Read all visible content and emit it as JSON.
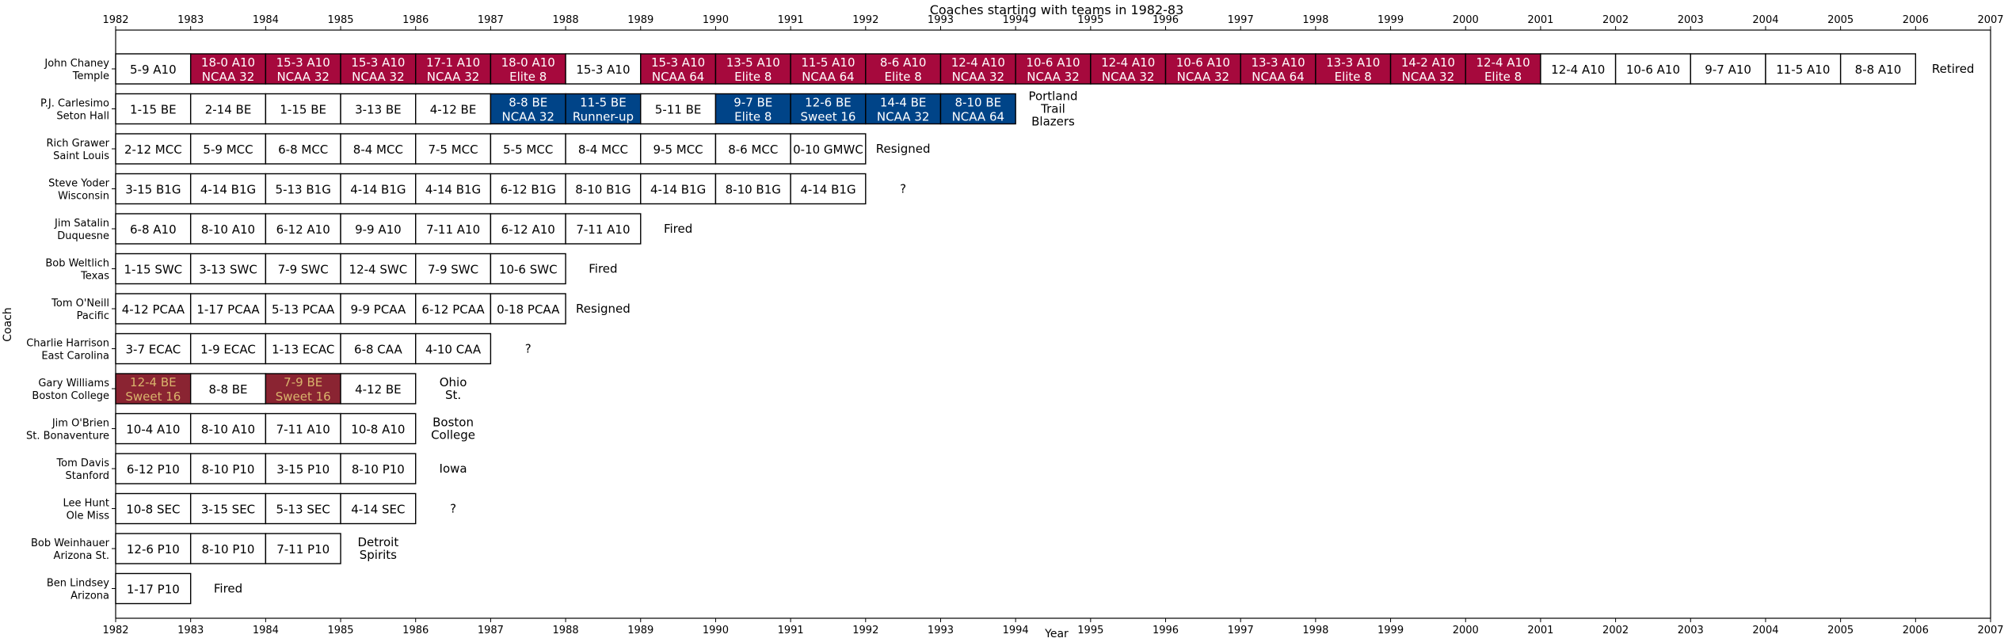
{
  "chart_data": {
    "type": "timeline",
    "title": "Coaches starting with teams in 1982-83",
    "xlabel": "Year",
    "ylabel": "Coach",
    "xlim": [
      1982,
      2007
    ],
    "x_ticks": [
      "1982",
      "1983",
      "1984",
      "1985",
      "1986",
      "1987",
      "1988",
      "1989",
      "1990",
      "1991",
      "1992",
      "1993",
      "1994",
      "1995",
      "1996",
      "1997",
      "1998",
      "1999",
      "2000",
      "2001",
      "2002",
      "2003",
      "2004",
      "2005",
      "2006",
      "2007"
    ],
    "colors": {
      "temple": "#A6093D",
      "seton_hall": "#004488",
      "boston_college": "#8A2432",
      "boston_college_text": "#D9B46C",
      "cell_border": "#000000",
      "cell_fill": "#ffffff"
    },
    "rows": [
      {
        "coach": "John Chaney",
        "team": "Temple",
        "seasons": [
          {
            "year": 1982,
            "line1": "5-9 A10",
            "line2": "",
            "style": "plain"
          },
          {
            "year": 1983,
            "line1": "18-0 A10",
            "line2": "NCAA 32",
            "style": "temple"
          },
          {
            "year": 1984,
            "line1": "15-3 A10",
            "line2": "NCAA 32",
            "style": "temple"
          },
          {
            "year": 1985,
            "line1": "15-3 A10",
            "line2": "NCAA 32",
            "style": "temple"
          },
          {
            "year": 1986,
            "line1": "17-1 A10",
            "line2": "NCAA 32",
            "style": "temple"
          },
          {
            "year": 1987,
            "line1": "18-0 A10",
            "line2": "Elite 8",
            "style": "temple"
          },
          {
            "year": 1988,
            "line1": "15-3 A10",
            "line2": "",
            "style": "plain"
          },
          {
            "year": 1989,
            "line1": "15-3 A10",
            "line2": "NCAA 64",
            "style": "temple"
          },
          {
            "year": 1990,
            "line1": "13-5 A10",
            "line2": "Elite 8",
            "style": "temple"
          },
          {
            "year": 1991,
            "line1": "11-5 A10",
            "line2": "NCAA 64",
            "style": "temple"
          },
          {
            "year": 1992,
            "line1": "8-6 A10",
            "line2": "Elite 8",
            "style": "temple"
          },
          {
            "year": 1993,
            "line1": "12-4 A10",
            "line2": "NCAA 32",
            "style": "temple"
          },
          {
            "year": 1994,
            "line1": "10-6 A10",
            "line2": "NCAA 32",
            "style": "temple"
          },
          {
            "year": 1995,
            "line1": "12-4 A10",
            "line2": "NCAA 32",
            "style": "temple"
          },
          {
            "year": 1996,
            "line1": "10-6 A10",
            "line2": "NCAA 32",
            "style": "temple"
          },
          {
            "year": 1997,
            "line1": "13-3 A10",
            "line2": "NCAA 64",
            "style": "temple"
          },
          {
            "year": 1998,
            "line1": "13-3 A10",
            "line2": "Elite 8",
            "style": "temple"
          },
          {
            "year": 1999,
            "line1": "14-2 A10",
            "line2": "NCAA 32",
            "style": "temple"
          },
          {
            "year": 2000,
            "line1": "12-4 A10",
            "line2": "Elite 8",
            "style": "temple"
          },
          {
            "year": 2001,
            "line1": "12-4 A10",
            "line2": "",
            "style": "plain"
          },
          {
            "year": 2002,
            "line1": "10-6 A10",
            "line2": "",
            "style": "plain"
          },
          {
            "year": 2003,
            "line1": "9-7 A10",
            "line2": "",
            "style": "plain"
          },
          {
            "year": 2004,
            "line1": "11-5 A10",
            "line2": "",
            "style": "plain"
          },
          {
            "year": 2005,
            "line1": "8-8 A10",
            "line2": "",
            "style": "plain"
          }
        ],
        "outcome": "Retired"
      },
      {
        "coach": "P.J. Carlesimo",
        "team": "Seton Hall",
        "seasons": [
          {
            "year": 1982,
            "line1": "1-15 BE",
            "line2": "",
            "style": "plain"
          },
          {
            "year": 1983,
            "line1": "2-14 BE",
            "line2": "",
            "style": "plain"
          },
          {
            "year": 1984,
            "line1": "1-15 BE",
            "line2": "",
            "style": "plain"
          },
          {
            "year": 1985,
            "line1": "3-13 BE",
            "line2": "",
            "style": "plain"
          },
          {
            "year": 1986,
            "line1": "4-12 BE",
            "line2": "",
            "style": "plain"
          },
          {
            "year": 1987,
            "line1": "8-8 BE",
            "line2": "NCAA 32",
            "style": "seton_hall"
          },
          {
            "year": 1988,
            "line1": "11-5 BE",
            "line2": "Runner-up",
            "style": "seton_hall"
          },
          {
            "year": 1989,
            "line1": "5-11 BE",
            "line2": "",
            "style": "plain"
          },
          {
            "year": 1990,
            "line1": "9-7 BE",
            "line2": "Elite 8",
            "style": "seton_hall"
          },
          {
            "year": 1991,
            "line1": "12-6 BE",
            "line2": "Sweet 16",
            "style": "seton_hall"
          },
          {
            "year": 1992,
            "line1": "14-4 BE",
            "line2": "NCAA 32",
            "style": "seton_hall"
          },
          {
            "year": 1993,
            "line1": "8-10 BE",
            "line2": "NCAA 64",
            "style": "seton_hall"
          }
        ],
        "outcome": "Portland\nTrail\nBlazers"
      },
      {
        "coach": "Rich Grawer",
        "team": "Saint Louis",
        "seasons": [
          {
            "year": 1982,
            "line1": "2-12 MCC",
            "line2": "",
            "style": "plain"
          },
          {
            "year": 1983,
            "line1": "5-9 MCC",
            "line2": "",
            "style": "plain"
          },
          {
            "year": 1984,
            "line1": "6-8 MCC",
            "line2": "",
            "style": "plain"
          },
          {
            "year": 1985,
            "line1": "8-4 MCC",
            "line2": "",
            "style": "plain"
          },
          {
            "year": 1986,
            "line1": "7-5 MCC",
            "line2": "",
            "style": "plain"
          },
          {
            "year": 1987,
            "line1": "5-5 MCC",
            "line2": "",
            "style": "plain"
          },
          {
            "year": 1988,
            "line1": "8-4 MCC",
            "line2": "",
            "style": "plain"
          },
          {
            "year": 1989,
            "line1": "9-5 MCC",
            "line2": "",
            "style": "plain"
          },
          {
            "year": 1990,
            "line1": "8-6 MCC",
            "line2": "",
            "style": "plain"
          },
          {
            "year": 1991,
            "line1": "0-10 GMWC",
            "line2": "",
            "style": "plain"
          }
        ],
        "outcome": "Resigned"
      },
      {
        "coach": "Steve Yoder",
        "team": "Wisconsin",
        "seasons": [
          {
            "year": 1982,
            "line1": "3-15 B1G",
            "line2": "",
            "style": "plain"
          },
          {
            "year": 1983,
            "line1": "4-14 B1G",
            "line2": "",
            "style": "plain"
          },
          {
            "year": 1984,
            "line1": "5-13 B1G",
            "line2": "",
            "style": "plain"
          },
          {
            "year": 1985,
            "line1": "4-14 B1G",
            "line2": "",
            "style": "plain"
          },
          {
            "year": 1986,
            "line1": "4-14 B1G",
            "line2": "",
            "style": "plain"
          },
          {
            "year": 1987,
            "line1": "6-12 B1G",
            "line2": "",
            "style": "plain"
          },
          {
            "year": 1988,
            "line1": "8-10 B1G",
            "line2": "",
            "style": "plain"
          },
          {
            "year": 1989,
            "line1": "4-14 B1G",
            "line2": "",
            "style": "plain"
          },
          {
            "year": 1990,
            "line1": "8-10 B1G",
            "line2": "",
            "style": "plain"
          },
          {
            "year": 1991,
            "line1": "4-14 B1G",
            "line2": "",
            "style": "plain"
          }
        ],
        "outcome": "?"
      },
      {
        "coach": "Jim Satalin",
        "team": "Duquesne",
        "seasons": [
          {
            "year": 1982,
            "line1": "6-8 A10",
            "line2": "",
            "style": "plain"
          },
          {
            "year": 1983,
            "line1": "8-10 A10",
            "line2": "",
            "style": "plain"
          },
          {
            "year": 1984,
            "line1": "6-12 A10",
            "line2": "",
            "style": "plain"
          },
          {
            "year": 1985,
            "line1": "9-9 A10",
            "line2": "",
            "style": "plain"
          },
          {
            "year": 1986,
            "line1": "7-11 A10",
            "line2": "",
            "style": "plain"
          },
          {
            "year": 1987,
            "line1": "6-12 A10",
            "line2": "",
            "style": "plain"
          },
          {
            "year": 1988,
            "line1": "7-11 A10",
            "line2": "",
            "style": "plain"
          }
        ],
        "outcome": "Fired"
      },
      {
        "coach": "Bob Weltlich",
        "team": "Texas",
        "seasons": [
          {
            "year": 1982,
            "line1": "1-15 SWC",
            "line2": "",
            "style": "plain"
          },
          {
            "year": 1983,
            "line1": "3-13 SWC",
            "line2": "",
            "style": "plain"
          },
          {
            "year": 1984,
            "line1": "7-9 SWC",
            "line2": "",
            "style": "plain"
          },
          {
            "year": 1985,
            "line1": "12-4 SWC",
            "line2": "",
            "style": "plain"
          },
          {
            "year": 1986,
            "line1": "7-9 SWC",
            "line2": "",
            "style": "plain"
          },
          {
            "year": 1987,
            "line1": "10-6 SWC",
            "line2": "",
            "style": "plain"
          }
        ],
        "outcome": "Fired"
      },
      {
        "coach": "Tom O'Neill",
        "team": "Pacific",
        "seasons": [
          {
            "year": 1982,
            "line1": "4-12 PCAA",
            "line2": "",
            "style": "plain"
          },
          {
            "year": 1983,
            "line1": "1-17 PCAA",
            "line2": "",
            "style": "plain"
          },
          {
            "year": 1984,
            "line1": "5-13 PCAA",
            "line2": "",
            "style": "plain"
          },
          {
            "year": 1985,
            "line1": "9-9 PCAA",
            "line2": "",
            "style": "plain"
          },
          {
            "year": 1986,
            "line1": "6-12 PCAA",
            "line2": "",
            "style": "plain"
          },
          {
            "year": 1987,
            "line1": "0-18 PCAA",
            "line2": "",
            "style": "plain"
          }
        ],
        "outcome": "Resigned"
      },
      {
        "coach": "Charlie Harrison",
        "team": "East Carolina",
        "seasons": [
          {
            "year": 1982,
            "line1": "3-7 ECAC",
            "line2": "",
            "style": "plain"
          },
          {
            "year": 1983,
            "line1": "1-9 ECAC",
            "line2": "",
            "style": "plain"
          },
          {
            "year": 1984,
            "line1": "1-13 ECAC",
            "line2": "",
            "style": "plain"
          },
          {
            "year": 1985,
            "line1": "6-8 CAA",
            "line2": "",
            "style": "plain"
          },
          {
            "year": 1986,
            "line1": "4-10 CAA",
            "line2": "",
            "style": "plain"
          }
        ],
        "outcome": "?"
      },
      {
        "coach": "Gary Williams",
        "team": "Boston College",
        "seasons": [
          {
            "year": 1982,
            "line1": "12-4 BE",
            "line2": "Sweet 16",
            "style": "boston_college"
          },
          {
            "year": 1983,
            "line1": "8-8 BE",
            "line2": "",
            "style": "plain"
          },
          {
            "year": 1984,
            "line1": "7-9 BE",
            "line2": "Sweet 16",
            "style": "boston_college"
          },
          {
            "year": 1985,
            "line1": "4-12 BE",
            "line2": "",
            "style": "plain"
          }
        ],
        "outcome": "Ohio\nSt."
      },
      {
        "coach": "Jim O'Brien",
        "team": "St. Bonaventure",
        "seasons": [
          {
            "year": 1982,
            "line1": "10-4 A10",
            "line2": "",
            "style": "plain"
          },
          {
            "year": 1983,
            "line1": "8-10 A10",
            "line2": "",
            "style": "plain"
          },
          {
            "year": 1984,
            "line1": "7-11 A10",
            "line2": "",
            "style": "plain"
          },
          {
            "year": 1985,
            "line1": "10-8 A10",
            "line2": "",
            "style": "plain"
          }
        ],
        "outcome": "Boston\nCollege"
      },
      {
        "coach": "Tom Davis",
        "team": "Stanford",
        "seasons": [
          {
            "year": 1982,
            "line1": "6-12 P10",
            "line2": "",
            "style": "plain"
          },
          {
            "year": 1983,
            "line1": "8-10 P10",
            "line2": "",
            "style": "plain"
          },
          {
            "year": 1984,
            "line1": "3-15 P10",
            "line2": "",
            "style": "plain"
          },
          {
            "year": 1985,
            "line1": "8-10 P10",
            "line2": "",
            "style": "plain"
          }
        ],
        "outcome": "Iowa"
      },
      {
        "coach": "Lee Hunt",
        "team": "Ole Miss",
        "seasons": [
          {
            "year": 1982,
            "line1": "10-8 SEC",
            "line2": "",
            "style": "plain"
          },
          {
            "year": 1983,
            "line1": "3-15 SEC",
            "line2": "",
            "style": "plain"
          },
          {
            "year": 1984,
            "line1": "5-13 SEC",
            "line2": "",
            "style": "plain"
          },
          {
            "year": 1985,
            "line1": "4-14 SEC",
            "line2": "",
            "style": "plain"
          }
        ],
        "outcome": "?"
      },
      {
        "coach": "Bob Weinhauer",
        "team": "Arizona St.",
        "seasons": [
          {
            "year": 1982,
            "line1": "12-6 P10",
            "line2": "",
            "style": "plain"
          },
          {
            "year": 1983,
            "line1": "8-10 P10",
            "line2": "",
            "style": "plain"
          },
          {
            "year": 1984,
            "line1": "7-11 P10",
            "line2": "",
            "style": "plain"
          }
        ],
        "outcome": "Detroit\nSpirits"
      },
      {
        "coach": "Ben Lindsey",
        "team": "Arizona",
        "seasons": [
          {
            "year": 1982,
            "line1": "1-17 P10",
            "line2": "",
            "style": "plain"
          }
        ],
        "outcome": "Fired"
      }
    ]
  }
}
